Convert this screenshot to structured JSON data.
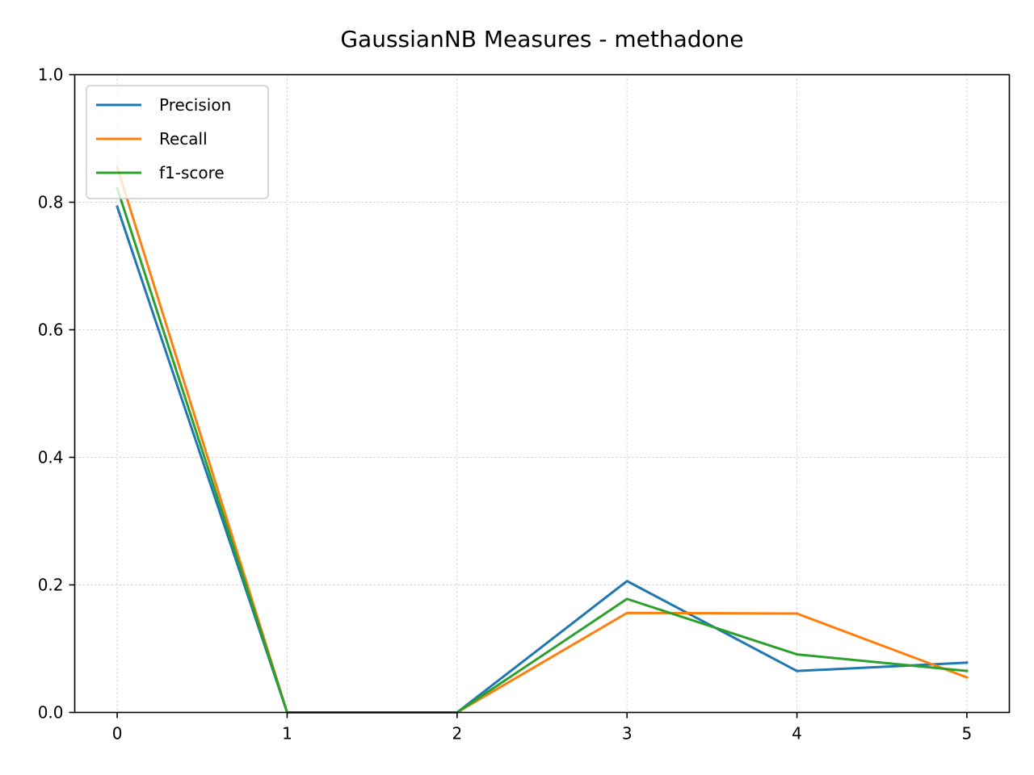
{
  "chart_data": {
    "type": "line",
    "title": "GaussianNB Measures - methadone",
    "xlabel": "",
    "ylabel": "",
    "x": [
      0,
      1,
      2,
      3,
      4,
      5
    ],
    "xticks": [
      "0",
      "1",
      "2",
      "3",
      "4",
      "5"
    ],
    "yticks": [
      "0.0",
      "0.2",
      "0.4",
      "0.6",
      "0.8",
      "1.0"
    ],
    "xlim": [
      -0.25,
      5.25
    ],
    "ylim": [
      0,
      1
    ],
    "grid": true,
    "legend_position": "top-left",
    "series": [
      {
        "name": "Precision",
        "color": "#1f77b4",
        "values": [
          0.793,
          0.0,
          0.0,
          0.206,
          0.065,
          0.078
        ]
      },
      {
        "name": "Recall",
        "color": "#ff7f0e",
        "values": [
          0.855,
          0.0,
          0.0,
          0.156,
          0.155,
          0.055
        ]
      },
      {
        "name": "f1-score",
        "color": "#2ca02c",
        "values": [
          0.822,
          0.0,
          0.0,
          0.178,
          0.091,
          0.065
        ]
      }
    ]
  }
}
